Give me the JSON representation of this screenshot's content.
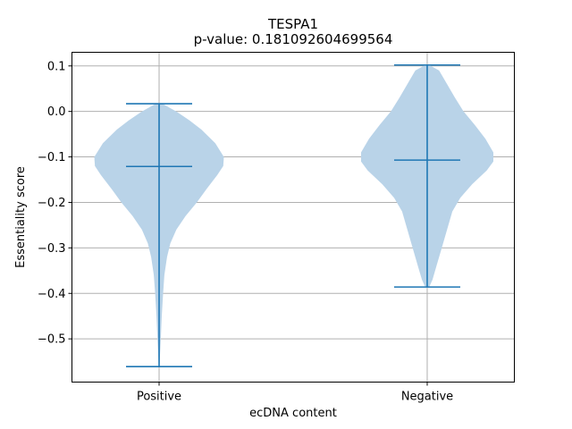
{
  "chart_data": {
    "type": "violin",
    "title": "TESPA1",
    "subtitle": "p-value: 0.181092604699564",
    "xlabel": "ecDNA content",
    "ylabel": "Essentiality score",
    "categories": [
      "Positive",
      "Negative"
    ],
    "ylim": [
      -0.595,
      0.13
    ],
    "yticks": [
      0.1,
      0.0,
      -0.1,
      -0.2,
      -0.3,
      -0.4,
      -0.5
    ],
    "ytick_labels": [
      "0.1",
      "0.0",
      "−0.1",
      "−0.2",
      "−0.3",
      "−0.4",
      "−0.5"
    ],
    "grid": true,
    "colors": {
      "body": "#b9d3e8",
      "lines": "#1f77b4",
      "grid": "#b0b0b0"
    },
    "violins": [
      {
        "category": "Positive",
        "max": 0.017,
        "median": -0.121,
        "min": -0.561,
        "profile": [
          [
            0.017,
            0.05
          ],
          [
            0.0,
            0.26
          ],
          [
            -0.02,
            0.46
          ],
          [
            -0.04,
            0.64
          ],
          [
            -0.07,
            0.85
          ],
          [
            -0.1,
            0.98
          ],
          [
            -0.12,
            0.97
          ],
          [
            -0.14,
            0.88
          ],
          [
            -0.17,
            0.72
          ],
          [
            -0.2,
            0.57
          ],
          [
            -0.23,
            0.4
          ],
          [
            -0.26,
            0.26
          ],
          [
            -0.29,
            0.17
          ],
          [
            -0.32,
            0.12
          ],
          [
            -0.36,
            0.08
          ],
          [
            -0.4,
            0.06
          ],
          [
            -0.45,
            0.04
          ],
          [
            -0.5,
            0.025
          ],
          [
            -0.54,
            0.012
          ],
          [
            -0.561,
            0.005
          ]
        ]
      },
      {
        "category": "Negative",
        "max": 0.102,
        "median": -0.107,
        "min": -0.386,
        "profile": [
          [
            0.102,
            0.03
          ],
          [
            0.09,
            0.18
          ],
          [
            0.06,
            0.3
          ],
          [
            0.03,
            0.42
          ],
          [
            0.0,
            0.55
          ],
          [
            -0.03,
            0.72
          ],
          [
            -0.06,
            0.88
          ],
          [
            -0.09,
            1.0
          ],
          [
            -0.11,
            1.0
          ],
          [
            -0.13,
            0.9
          ],
          [
            -0.16,
            0.68
          ],
          [
            -0.19,
            0.5
          ],
          [
            -0.22,
            0.38
          ],
          [
            -0.26,
            0.3
          ],
          [
            -0.3,
            0.22
          ],
          [
            -0.34,
            0.14
          ],
          [
            -0.37,
            0.08
          ],
          [
            -0.386,
            0.03
          ]
        ]
      }
    ]
  }
}
